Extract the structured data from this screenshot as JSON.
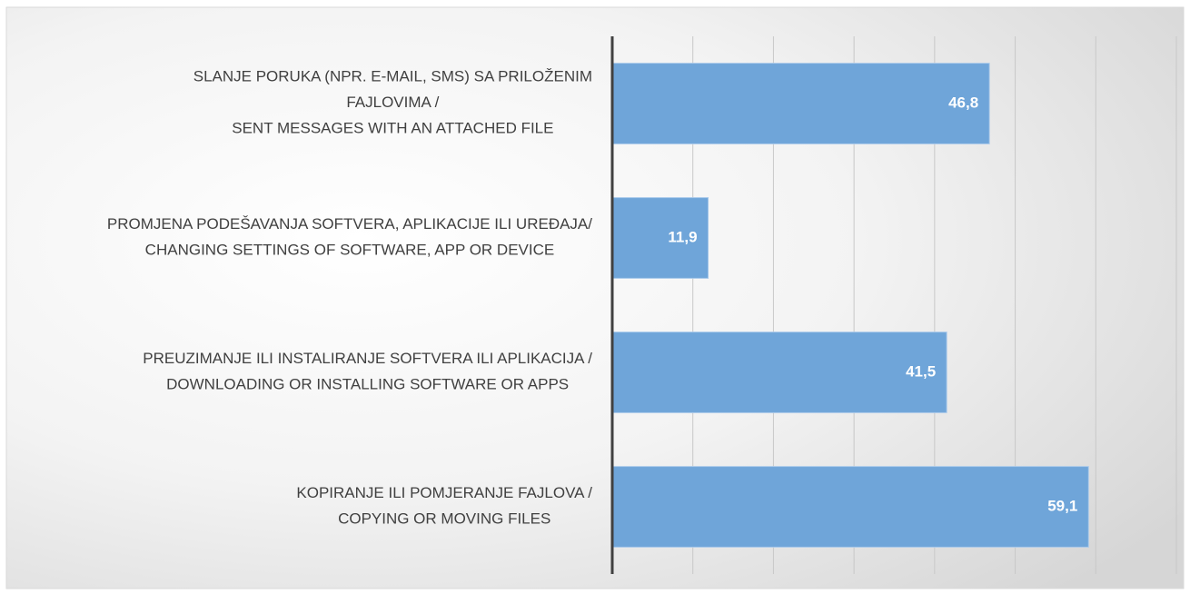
{
  "chart_data": {
    "type": "barh",
    "categories": [
      "SLANJE PORUKA (NPR. E-MAIL, SMS) SA PRILOŽENIM\nFAJLOVIMA /\nSENT MESSAGES WITH AN ATTACHED FILE",
      "PROMJENA PODEŠAVANJA SOFTVERA, APLIKACIJE ILI UREĐAJA/\nCHANGING SETTINGS OF SOFTWARE, APP OR DEVICE",
      "PREUZIMANJE ILI INSTALIRANJE SOFTVERA ILI APLIKACIJA /\nDOWNLOADING OR INSTALLING SOFTWARE OR APPS",
      "KOPIRANJE ILI POMJERANJE FAJLOVA /\nCOPYING OR MOVING FILES"
    ],
    "values": [
      46.8,
      11.9,
      41.5,
      59.1
    ],
    "value_labels": [
      "46,8",
      "11,9",
      "41,5",
      "59,1"
    ],
    "color": "#6fa5d9",
    "xlim": [
      0,
      70
    ],
    "xticks": [
      0,
      10,
      20,
      30,
      40,
      50,
      60,
      70
    ],
    "grid": true
  }
}
